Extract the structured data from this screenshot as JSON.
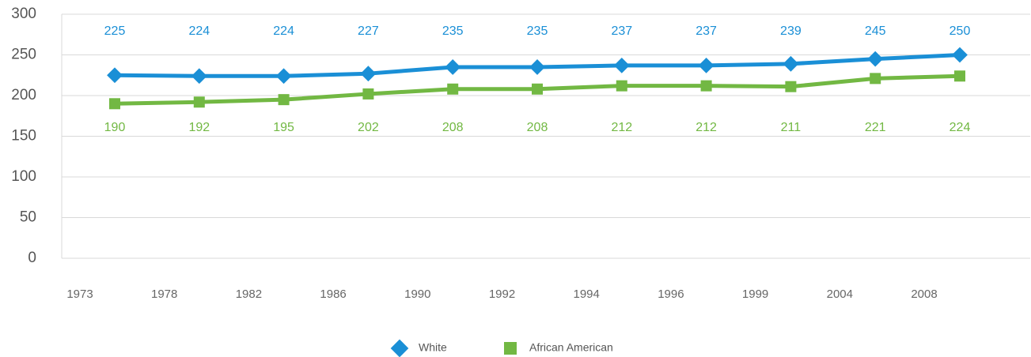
{
  "chart_data": {
    "type": "line",
    "xticks": [
      1973,
      1978,
      1982,
      1986,
      1990,
      1992,
      1994,
      1996,
      1999,
      2004,
      2008
    ],
    "series": [
      {
        "name": "White",
        "color": "#1a8fd6",
        "values": [
          225,
          224,
          224,
          227,
          235,
          235,
          237,
          237,
          239,
          245,
          250
        ]
      },
      {
        "name": "African American",
        "color": "#72b843",
        "values": [
          190,
          192,
          195,
          202,
          208,
          208,
          212,
          212,
          211,
          221,
          224
        ]
      }
    ],
    "ylim": [
      0,
      300
    ],
    "yticks": [
      0,
      50,
      100,
      150,
      200,
      250,
      300
    ],
    "grid": true,
    "legend": "bottom"
  }
}
